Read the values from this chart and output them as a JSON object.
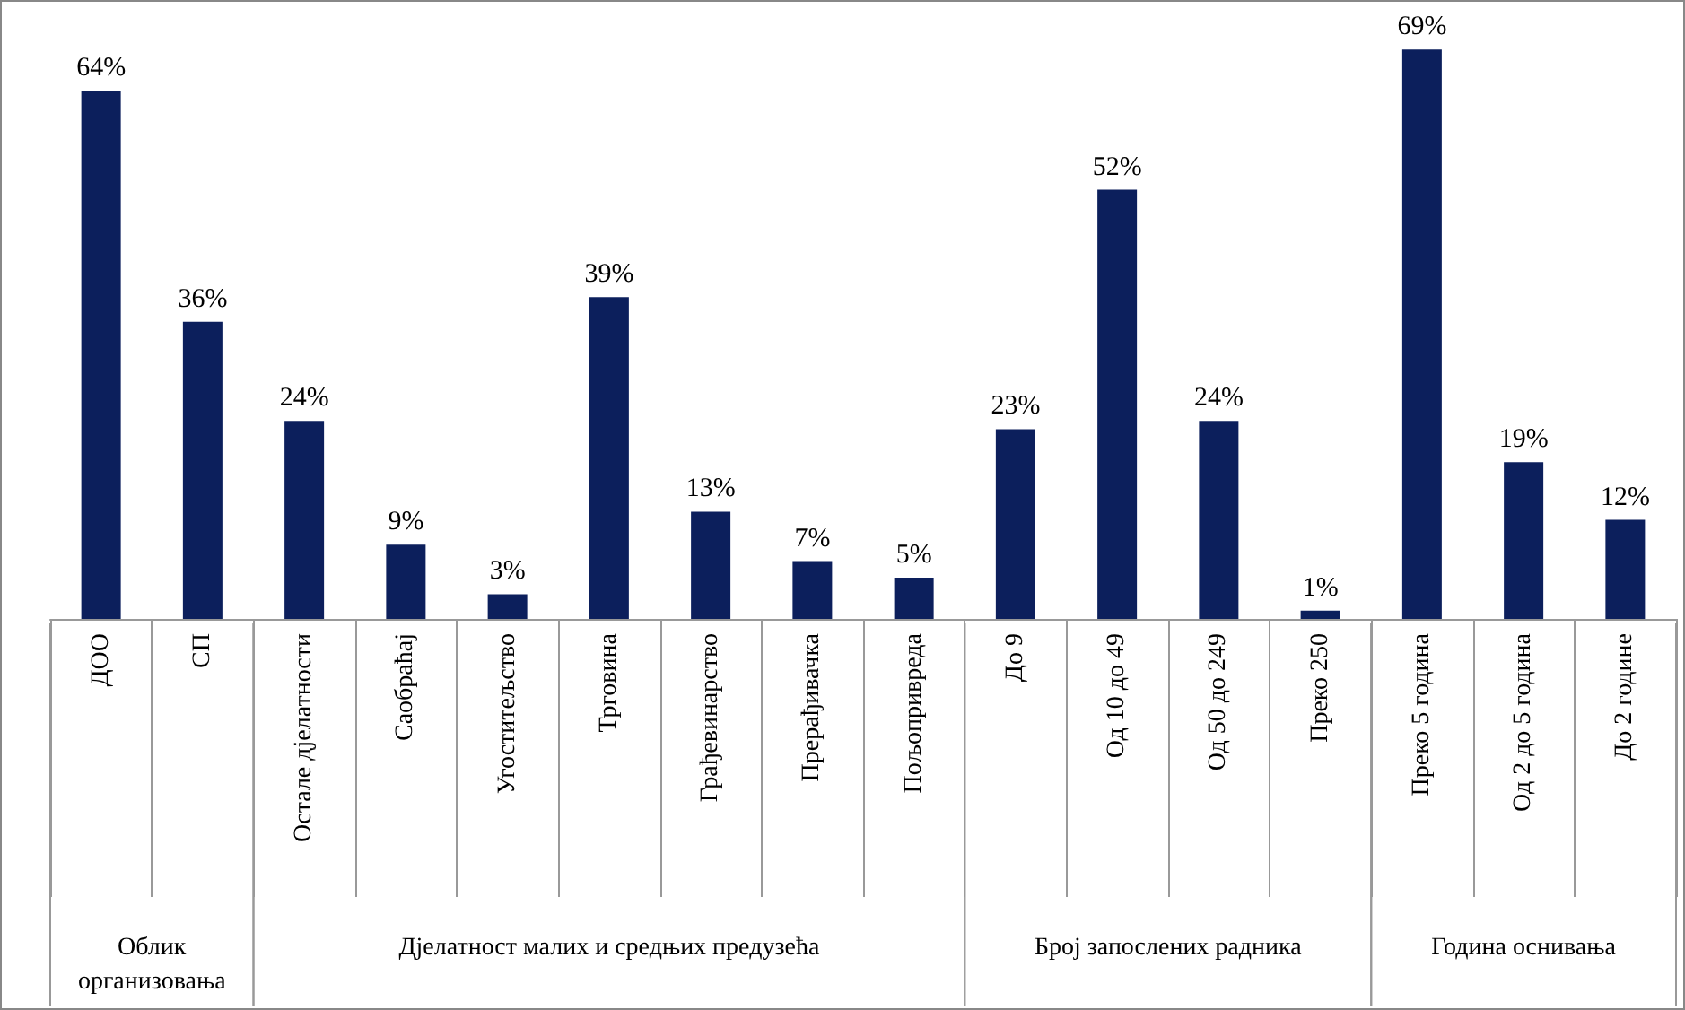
{
  "chart_data": {
    "type": "bar",
    "categories": [
      "ДОО",
      "СП",
      "Остале дјелатности",
      "Саобраћај",
      "Угоститељство",
      "Трговина",
      "Грађевинарство",
      "Прерађивачка",
      "Пољопривреда",
      "До 9",
      "Од 10 до 49",
      "Од 50 до 249",
      "Преко 250",
      "Преко 5 година",
      "Од 2 до 5 година",
      "До 2 године"
    ],
    "values": [
      64,
      36,
      24,
      9,
      3,
      39,
      13,
      7,
      5,
      23,
      52,
      24,
      1,
      69,
      19,
      12
    ],
    "value_labels": [
      "64%",
      "36%",
      "24%",
      "9%",
      "3%",
      "39%",
      "13%",
      "7%",
      "5%",
      "23%",
      "52%",
      "24%",
      "1%",
      "69%",
      "19%",
      "12%"
    ],
    "color": "#0c1f5c",
    "annotations": [
      "Облик организовања",
      "Дјелатност малих и средњих предузећа",
      "Број запослених радника",
      "Година оснивања"
    ]
  }
}
